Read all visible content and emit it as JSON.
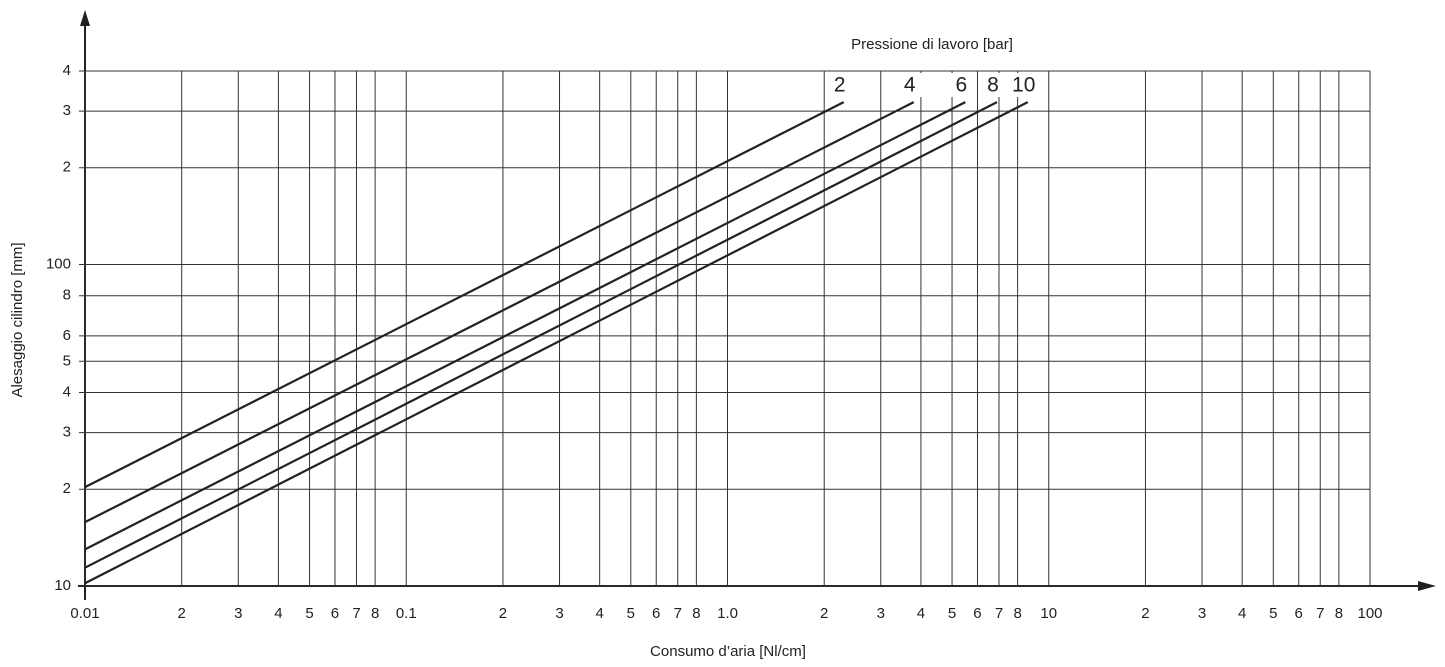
{
  "chart_data": {
    "type": "line",
    "title": "Pressione di lavoro [bar]",
    "x_label": "Consumo d’aria [Nl/cm]",
    "y_label": "Alesaggio cilindro [mm]",
    "log_x": true,
    "log_y": true,
    "grid": true,
    "color": "#222",
    "xlim": [
      0.01,
      100
    ],
    "ylim": [
      10,
      400
    ],
    "xticks": [
      0.01,
      {
        "value": 0.02,
        "label": "2"
      },
      {
        "value": 0.03,
        "label": "3"
      },
      {
        "value": 0.04,
        "label": "4"
      },
      {
        "value": 0.05,
        "label": "5"
      },
      {
        "value": 0.06,
        "label": "6"
      },
      {
        "value": 0.07,
        "label": "7"
      },
      {
        "value": 0.08,
        "label": "8"
      },
      0.1,
      {
        "value": 0.2,
        "label": "2"
      },
      {
        "value": 0.3,
        "label": "3"
      },
      {
        "value": 0.4,
        "label": "4"
      },
      {
        "value": 0.5,
        "label": "5"
      },
      {
        "value": 0.6,
        "label": "6"
      },
      {
        "value": 0.7,
        "label": "7"
      },
      {
        "value": 0.8,
        "label": "8"
      },
      {
        "value": 1,
        "label": "1.0"
      },
      {
        "value": 2,
        "label": "2"
      },
      {
        "value": 3,
        "label": "3"
      },
      {
        "value": 4,
        "label": "4"
      },
      {
        "value": 5,
        "label": "5"
      },
      {
        "value": 6,
        "label": "6"
      },
      {
        "value": 7,
        "label": "7"
      },
      {
        "value": 8,
        "label": "8"
      },
      10,
      {
        "value": 20,
        "label": "2"
      },
      {
        "value": 30,
        "label": "3"
      },
      {
        "value": 40,
        "label": "4"
      },
      {
        "value": 50,
        "label": "5"
      },
      {
        "value": 60,
        "label": "6"
      },
      {
        "value": 70,
        "label": "7"
      },
      {
        "value": 80,
        "label": "8"
      },
      100
    ],
    "yticks": [
      10,
      {
        "value": 20,
        "label": "2"
      },
      {
        "value": 30,
        "label": "3"
      },
      {
        "value": 40,
        "label": "4"
      },
      {
        "value": 50,
        "label": "5"
      },
      {
        "value": 60,
        "label": "6"
      },
      {
        "value": 80,
        "label": "8"
      },
      100,
      {
        "value": 200,
        "label": "2"
      },
      {
        "value": 300,
        "label": "3"
      },
      {
        "value": 400,
        "label": "4"
      }
    ],
    "series": [
      {
        "name": "2",
        "x": [
          0.01,
          2.3
        ],
        "values": [
          20.3,
          320
        ]
      },
      {
        "name": "4",
        "x": [
          0.01,
          3.8
        ],
        "values": [
          15.8,
          320
        ]
      },
      {
        "name": "6",
        "x": [
          0.01,
          5.5
        ],
        "values": [
          13.0,
          320
        ]
      },
      {
        "name": "8",
        "x": [
          0.01,
          6.9
        ],
        "values": [
          11.4,
          320
        ]
      },
      {
        "name": "10",
        "x": [
          0.01,
          8.6
        ],
        "values": [
          10.2,
          320
        ]
      }
    ]
  }
}
